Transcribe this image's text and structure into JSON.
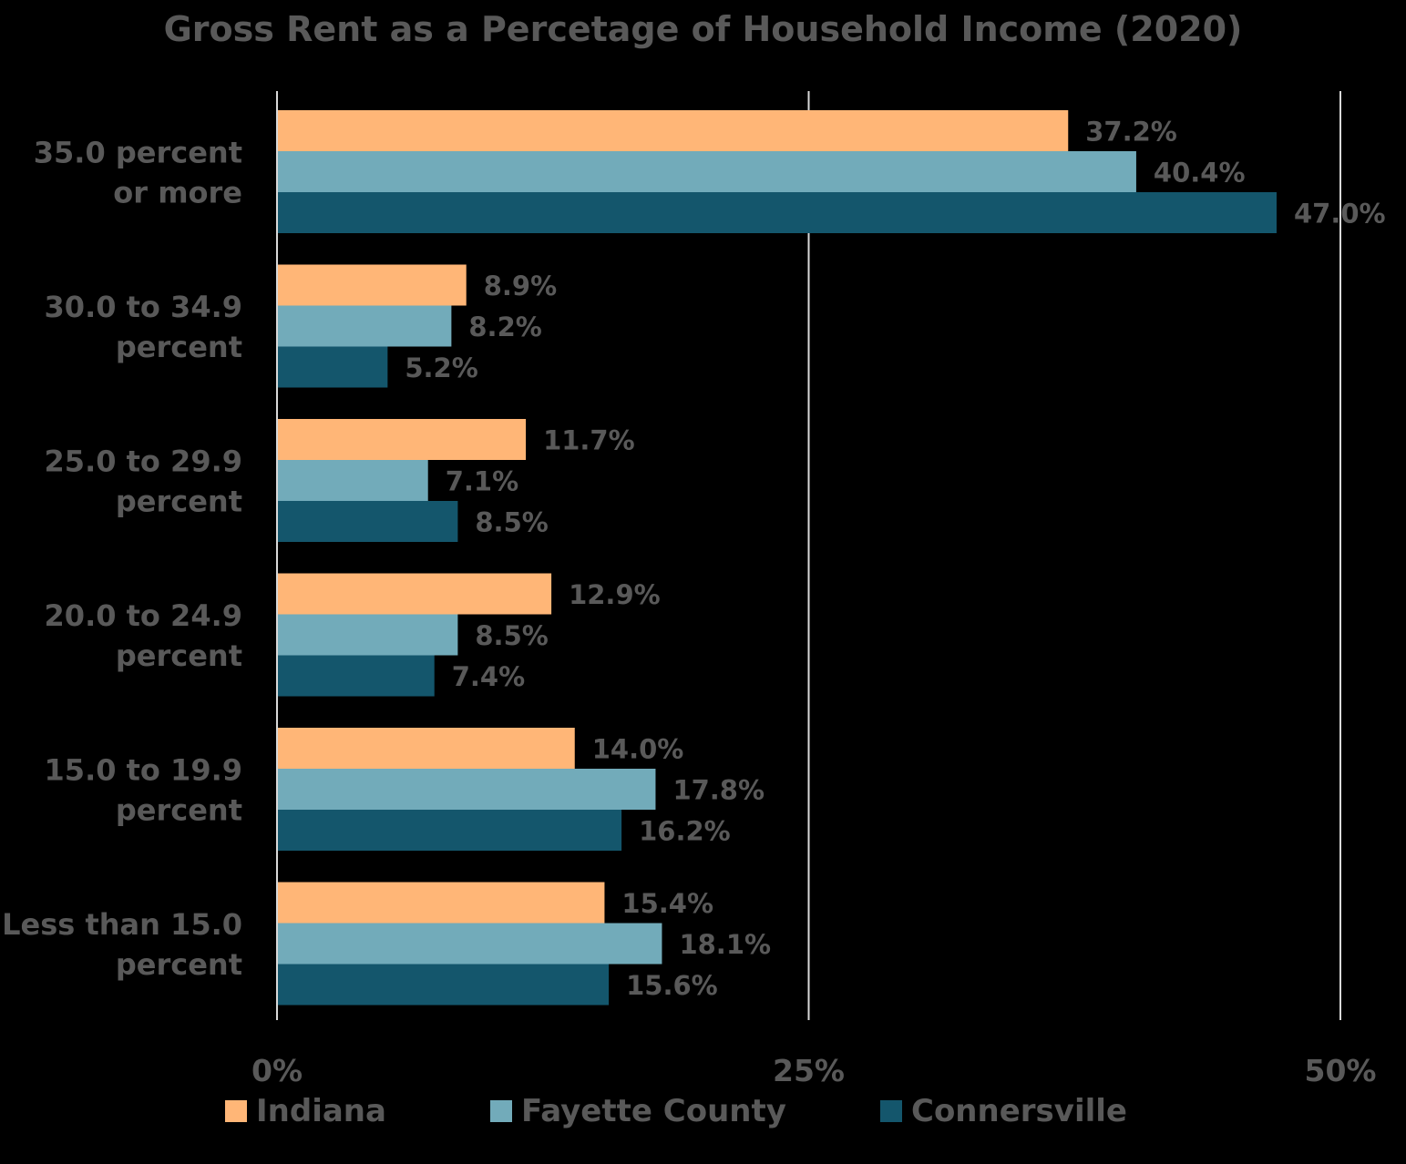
{
  "chart_data": {
    "type": "bar",
    "orientation": "horizontal",
    "title": "Gross Rent as a Percetage of Household Income (2020)",
    "xlabel": "",
    "ylabel": "",
    "xlim": [
      0,
      50
    ],
    "x_ticks": [
      0,
      25,
      50
    ],
    "x_tick_labels": [
      "0%",
      "25%",
      "50%"
    ],
    "grid": true,
    "legend_position": "bottom",
    "categories": [
      [
        "35.0 percent",
        "or more"
      ],
      [
        "30.0 to 34.9",
        "percent"
      ],
      [
        "25.0 to 29.9",
        "percent"
      ],
      [
        "20.0 to 24.9",
        "percent"
      ],
      [
        "15.0 to 19.9",
        "percent"
      ],
      [
        "Less than 15.0",
        "percent"
      ]
    ],
    "series": [
      {
        "name": "Indiana",
        "color": "#FFB677",
        "values": [
          37.2,
          8.9,
          11.7,
          12.9,
          14.0,
          15.4
        ],
        "labels": [
          "37.2%",
          "8.9%",
          "11.7%",
          "12.9%",
          "14.0%",
          "15.4%"
        ]
      },
      {
        "name": "Fayette County",
        "color": "#72ABBA",
        "values": [
          40.4,
          8.2,
          7.1,
          8.5,
          17.8,
          18.1
        ],
        "labels": [
          "40.4%",
          "8.2%",
          "7.1%",
          "8.5%",
          "17.8%",
          "18.1%"
        ]
      },
      {
        "name": "Connersville",
        "color": "#14566C",
        "values": [
          47.0,
          5.2,
          8.5,
          7.4,
          16.2,
          15.6
        ],
        "labels": [
          "47.0%",
          "5.2%",
          "8.5%",
          "7.4%",
          "16.2%",
          "15.6%"
        ]
      }
    ]
  },
  "colors": {
    "background": "#000000",
    "text": "#595959",
    "gridline": "#D9D9D9"
  }
}
